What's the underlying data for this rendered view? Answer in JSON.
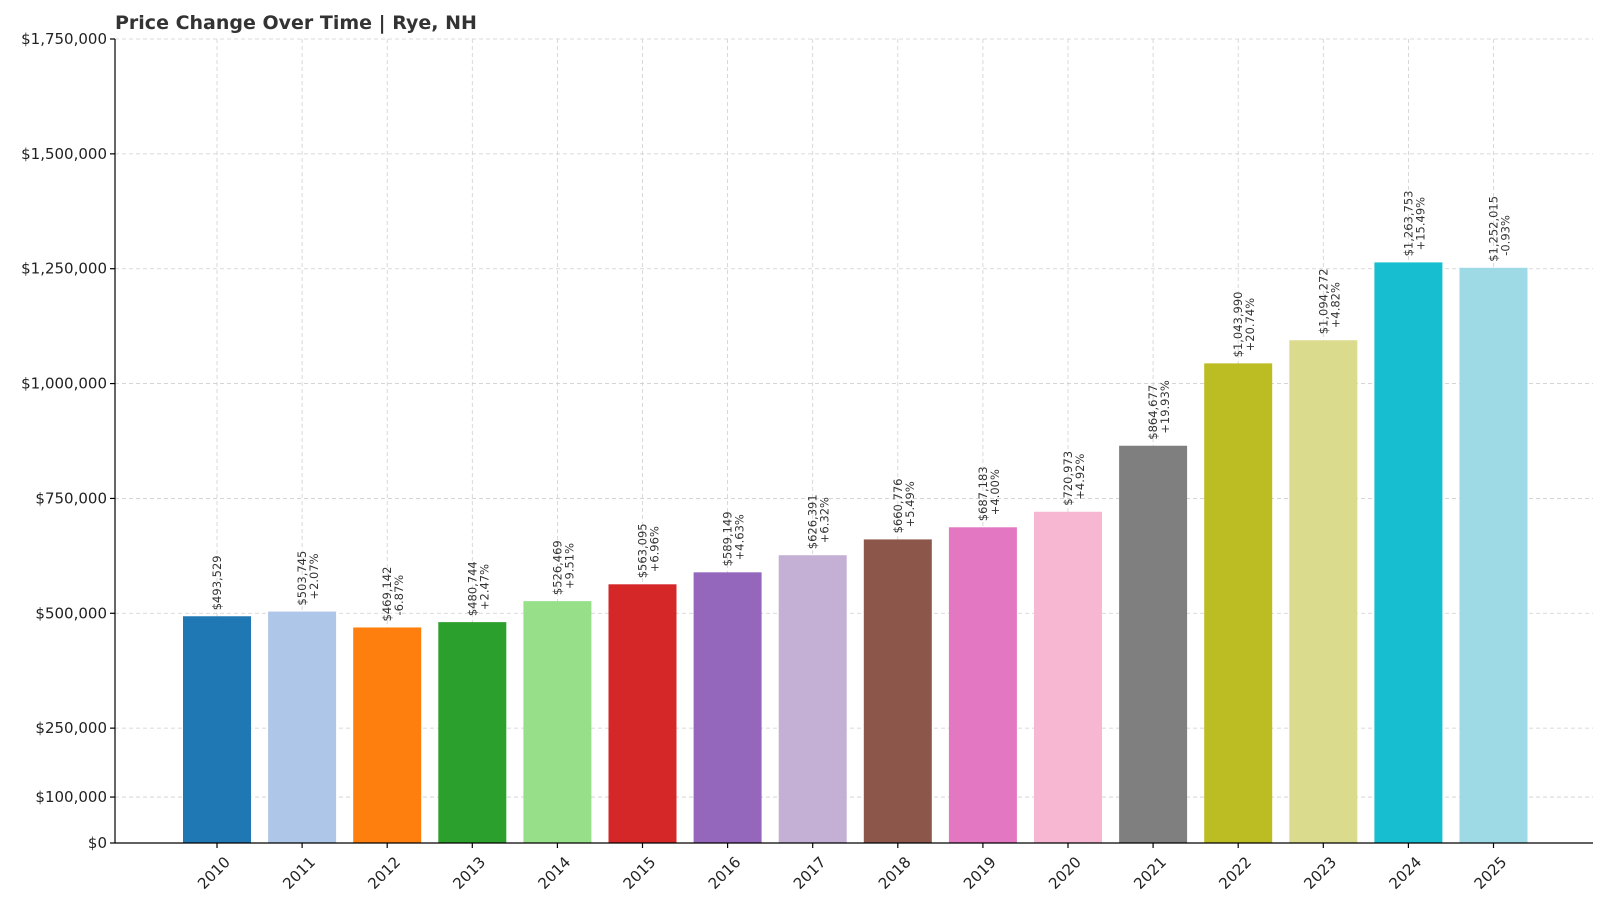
{
  "chart_data": {
    "type": "bar",
    "title": "Price Change Over Time | Rye, NH",
    "xlabel": "",
    "ylabel": "",
    "ylim": [
      0,
      1750000
    ],
    "yticks": [
      0,
      100000,
      250000,
      500000,
      750000,
      1000000,
      1250000,
      1500000,
      1750000
    ],
    "ytick_labels": [
      "$0",
      "$100,000",
      "$250,000",
      "$500,000",
      "$750,000",
      "$1,000,000",
      "$1,250,000",
      "$1,500,000",
      "$1,750,000"
    ],
    "grid": true,
    "categories": [
      "2010",
      "2011",
      "2012",
      "2013",
      "2014",
      "2015",
      "2016",
      "2017",
      "2018",
      "2019",
      "2020",
      "2021",
      "2022",
      "2023",
      "2024",
      "2025"
    ],
    "values": [
      493529,
      503745,
      469142,
      480744,
      526469,
      563095,
      589149,
      626391,
      660776,
      687183,
      720973,
      864677,
      1043990,
      1094272,
      1263753,
      1252015
    ],
    "value_labels": [
      "$493,529",
      "$503,745",
      "$469,142",
      "$480,744",
      "$526,469",
      "$563,095",
      "$589,149",
      "$626,391",
      "$660,776",
      "$687,183",
      "$720,973",
      "$864,677",
      "$1,043,990",
      "$1,094,272",
      "$1,263,753",
      "$1,252,015"
    ],
    "change_labels": [
      "",
      "+2.07%",
      "-6.87%",
      "+2.47%",
      "+9.51%",
      "+6.96%",
      "+4.63%",
      "+6.32%",
      "+5.49%",
      "+4.00%",
      "+4.92%",
      "+19.93%",
      "+20.74%",
      "+4.82%",
      "+15.49%",
      "-0.93%"
    ],
    "colors": [
      "#1f77b4",
      "#aec7e8",
      "#ff7f0e",
      "#2ca02c",
      "#98df8a",
      "#d62728",
      "#9467bd",
      "#c5b0d5",
      "#8c564b",
      "#e377c2",
      "#f7b6d2",
      "#7f7f7f",
      "#bcbd22",
      "#dbdb8d",
      "#17becf",
      "#9edae5"
    ]
  }
}
